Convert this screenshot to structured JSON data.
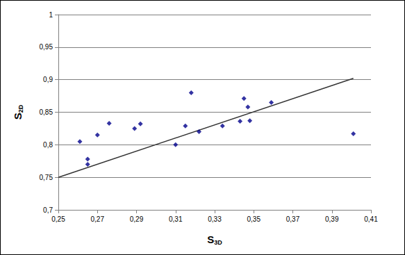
{
  "chart_data": {
    "type": "scatter",
    "x_label": "S3D",
    "y_label": "S2D",
    "series": [
      {
        "type": "scatter",
        "color": "#00008b",
        "marker": "diamond",
        "x": [
          0.261,
          0.265,
          0.265,
          0.27,
          0.276,
          0.289,
          0.292,
          0.31,
          0.315,
          0.318,
          0.322,
          0.334,
          0.343,
          0.345,
          0.347,
          0.348,
          0.359,
          0.401
        ],
        "values": [
          0.805,
          0.778,
          0.77,
          0.815,
          0.833,
          0.825,
          0.832,
          0.8,
          0.829,
          0.88,
          0.82,
          0.829,
          0.836,
          0.871,
          0.858,
          0.837,
          0.865,
          0.817
        ]
      },
      {
        "type": "line",
        "color": "#333333",
        "line_style": "solid",
        "x": [
          0.25,
          0.401
        ],
        "values": [
          0.75,
          0.902
        ]
      }
    ],
    "xlim": [
      0.25,
      0.41
    ],
    "xticks": [
      {
        "value": 0.25,
        "label": "0,25"
      },
      {
        "value": 0.27,
        "label": "0,27"
      },
      {
        "value": 0.29,
        "label": "0,29"
      },
      {
        "value": 0.31,
        "label": "0,31"
      },
      {
        "value": 0.33,
        "label": "0,33"
      },
      {
        "value": 0.35,
        "label": "0,35"
      },
      {
        "value": 0.37,
        "label": "0,37"
      },
      {
        "value": 0.39,
        "label": "0,39"
      },
      {
        "value": 0.41,
        "label": "0,41"
      }
    ],
    "ylim": [
      0.7,
      1
    ],
    "yticks": [
      {
        "value": 0.7,
        "label": "0,7"
      },
      {
        "value": 0.75,
        "label": "0,75"
      },
      {
        "value": 0.8,
        "label": "0,8"
      },
      {
        "value": 0.85,
        "label": "0,85"
      },
      {
        "value": 0.9,
        "label": "0,9"
      },
      {
        "value": 0.95,
        "label": "0,95"
      },
      1
    ],
    "grid": true
  }
}
